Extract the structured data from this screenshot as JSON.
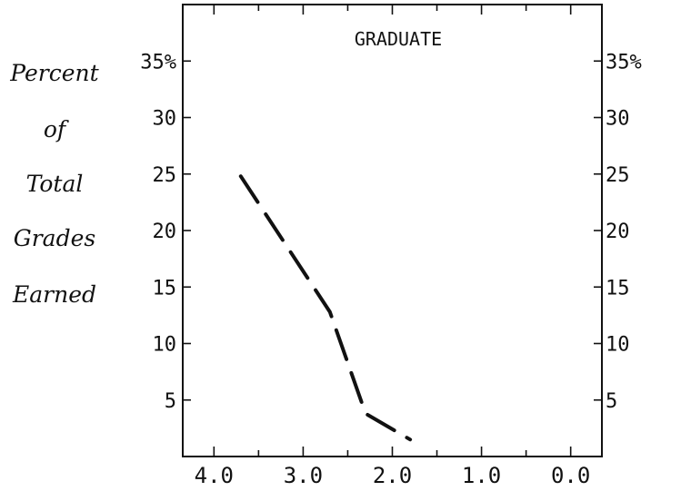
{
  "chart_data": {
    "type": "line",
    "title": "GRADUATE",
    "ylabel_lines": [
      "Percent",
      "of",
      "Total",
      "Grades",
      "Earned"
    ],
    "xlabel": "",
    "x_reversed": true,
    "xlim": [
      4.35,
      -0.35
    ],
    "ylim": [
      0,
      40
    ],
    "x_ticks": [
      4.0,
      3.0,
      2.0,
      1.0,
      0.0
    ],
    "x_tick_labels": [
      "4.0",
      "3.0",
      "2.0",
      "1.0",
      "0.0"
    ],
    "y_ticks": [
      5,
      10,
      15,
      20,
      25,
      30,
      35
    ],
    "y_tick_labels_left": [
      "5",
      "10",
      "15",
      "20",
      "25",
      "30",
      "35%"
    ],
    "y_tick_labels_right": [
      "5",
      "10",
      "15",
      "20",
      "25",
      "30",
      "35%"
    ],
    "grid": false,
    "line_style": "dashed",
    "line_color": "#111111",
    "series": [
      {
        "x": [
          3.7,
          2.7,
          2.3,
          1.8
        ],
        "y": [
          24.8,
          12.8,
          3.8,
          1.5
        ]
      }
    ]
  }
}
